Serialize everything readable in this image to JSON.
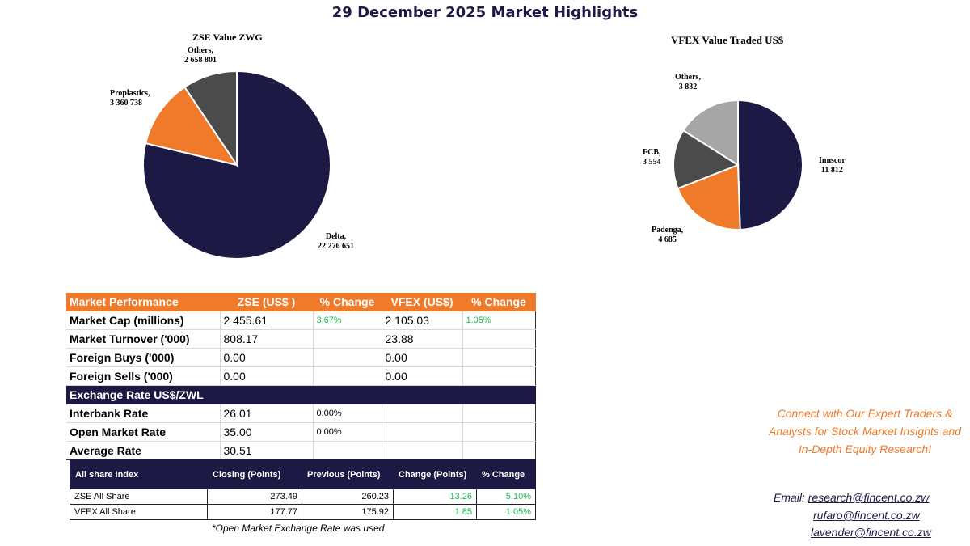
{
  "title": "29 December 2025 Market Highlights",
  "colors": {
    "navy": "#1c1a44",
    "orange": "#ee7a2a",
    "darkgray": "#4b4b4b",
    "lightgray": "#a6a6a6",
    "green": "#1db954"
  },
  "chart_data": [
    {
      "type": "pie",
      "title": "ZSE Value ZWG",
      "slices": [
        {
          "name": "Delta,",
          "value": 22276651,
          "value_label": "22 276 651"
        },
        {
          "name": "Proplastics,",
          "value": 3360738,
          "value_label": "3 360 738"
        },
        {
          "name": "Others,",
          "value": 2658801,
          "value_label": "2 658 801"
        }
      ]
    },
    {
      "type": "pie",
      "title": "VFEX Value Traded US$",
      "slices": [
        {
          "name": "Innscor",
          "value": 11812,
          "value_label": "11 812"
        },
        {
          "name": "Padenga,",
          "value": 4685,
          "value_label": "4 685"
        },
        {
          "name": "FCB,",
          "value": 3554,
          "value_label": "3 554"
        },
        {
          "name": "Others,",
          "value": 3832,
          "value_label": "3 832"
        }
      ]
    }
  ],
  "market_performance": {
    "headers": [
      "Market Performance",
      "ZSE  (US$ )",
      "% Change",
      "VFEX (US$)",
      "% Change"
    ],
    "rows": [
      [
        "Market Cap (millions)",
        "2 455.61",
        "3.67%",
        "2 105.03",
        "1.05%"
      ],
      [
        "Market Turnover ('000)",
        "808.17",
        "",
        "23.88",
        ""
      ],
      [
        "Foreign Buys ('000)",
        "0.00",
        "",
        "0.00",
        ""
      ],
      [
        "Foreign Sells ('000)",
        "0.00",
        "",
        "0.00",
        ""
      ]
    ],
    "exchange_header": "Exchange Rate US$/ZWL",
    "exchange_rows": [
      [
        "Interbank Rate",
        "26.01",
        "0.00%"
      ],
      [
        "Open Market Rate",
        "35.00",
        "0.00%"
      ],
      [
        "Average Rate",
        "30.51",
        ""
      ]
    ]
  },
  "all_share": {
    "headers": [
      "All share Index",
      "Closing (Points)",
      "Previous (Points)",
      "Change (Points)",
      "% Change"
    ],
    "rows": [
      [
        "ZSE All Share",
        "273.49",
        "260.23",
        "13.26",
        "5.10%"
      ],
      [
        "VFEX  All Share",
        "177.77",
        "175.92",
        "1.85",
        "1.05%"
      ]
    ]
  },
  "footnote": "*Open Market  Exchange Rate was used",
  "promo": "Connect with Our Expert Traders & Analysts for Stock Market Insights and In-Depth Equity Research!",
  "email": {
    "label": "Email:",
    "addresses": [
      "research@fincent.co.zw",
      "rufaro@fincent.co.zw",
      "lavender@fincent.co.zw"
    ]
  }
}
